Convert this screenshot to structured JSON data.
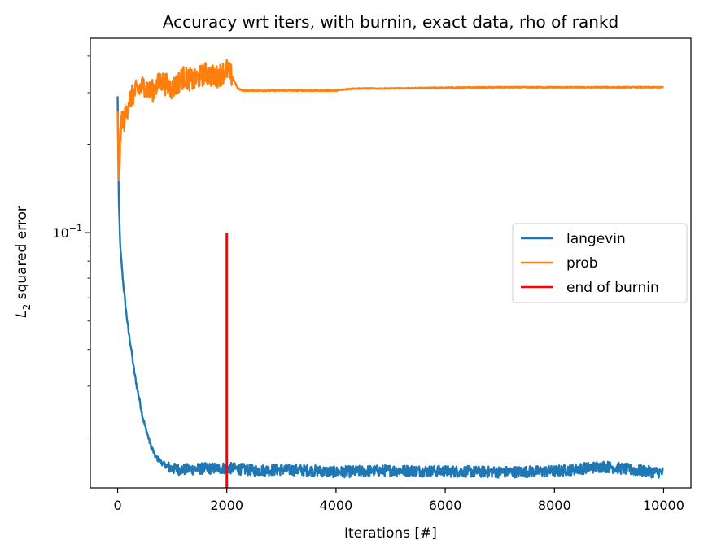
{
  "chart_data": {
    "type": "line",
    "title": "Accuracy wrt iters, with burnin, exact data, rho of rankd",
    "xlabel": "Iterations [#]",
    "ylabel_base": "L",
    "ylabel_sub": "2",
    "ylabel_rest": " squared error",
    "xlim": [
      -500,
      10500
    ],
    "ylim": [
      0.0135,
      0.46
    ],
    "yscale": "log",
    "grid": false,
    "legend_position": "center-right",
    "x_ticks": [
      {
        "value": 0,
        "label": "0"
      },
      {
        "value": 2000,
        "label": "2000"
      },
      {
        "value": 4000,
        "label": "4000"
      },
      {
        "value": 6000,
        "label": "6000"
      },
      {
        "value": 8000,
        "label": "8000"
      },
      {
        "value": 10000,
        "label": "10000"
      }
    ],
    "y_ticks": [
      {
        "value": 0.1,
        "base": "10",
        "exp": "−1"
      }
    ],
    "series": [
      {
        "name": "langevin",
        "color": "#1f77b4",
        "x": [
          0,
          20,
          50,
          100,
          150,
          200,
          250,
          300,
          350,
          400,
          450,
          500,
          600,
          700,
          800,
          900,
          1000,
          1200,
          1500,
          2000,
          2500,
          3000,
          3500,
          4000,
          5000,
          6000,
          7000,
          8000,
          8900,
          9500,
          10000
        ],
        "y": [
          0.29,
          0.13,
          0.088,
          0.068,
          0.055,
          0.046,
          0.04,
          0.034,
          0.03,
          0.027,
          0.024,
          0.022,
          0.019,
          0.0172,
          0.0165,
          0.016,
          0.0157,
          0.0156,
          0.0157,
          0.0158,
          0.0155,
          0.0156,
          0.0155,
          0.0153,
          0.0155,
          0.0154,
          0.0153,
          0.0154,
          0.016,
          0.0155,
          0.0152
        ]
      },
      {
        "name": "prob",
        "color": "#ff7f0e",
        "x": [
          0,
          20,
          50,
          80,
          120,
          200,
          300,
          400,
          500,
          600,
          800,
          1000,
          1200,
          1400,
          1600,
          1800,
          2000,
          2100,
          2200,
          2300,
          2500,
          3000,
          3500,
          4000,
          4300,
          5000,
          6000,
          7000,
          8000,
          9000,
          10000
        ],
        "y": [
          0.27,
          0.14,
          0.21,
          0.25,
          0.24,
          0.28,
          0.3,
          0.31,
          0.32,
          0.3,
          0.33,
          0.31,
          0.34,
          0.33,
          0.35,
          0.34,
          0.36,
          0.34,
          0.31,
          0.305,
          0.305,
          0.305,
          0.305,
          0.305,
          0.31,
          0.31,
          0.312,
          0.313,
          0.313,
          0.313,
          0.313
        ]
      },
      {
        "name": "end of burnin",
        "color": "#ff0000",
        "x": [
          2000,
          2000
        ],
        "y": [
          0.0135,
          0.1
        ]
      }
    ]
  }
}
